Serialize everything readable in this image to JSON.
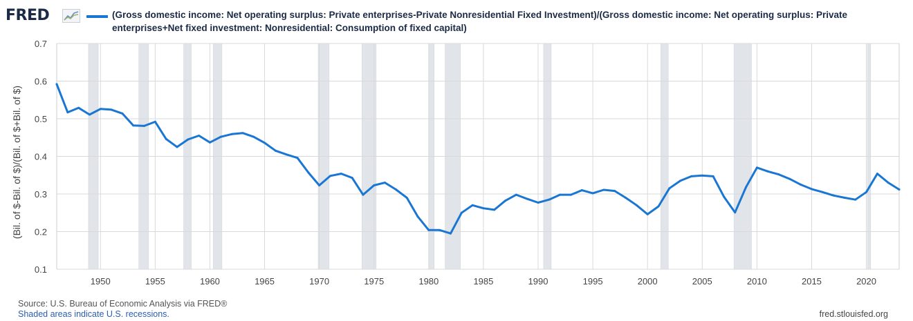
{
  "header": {
    "logo_text": "FRED",
    "logo_icon": "trend-line-icon",
    "legend_label": "(Gross domestic income: Net operating surplus: Private enterprises-Private Nonresidential Fixed Investment)/(Gross domestic income: Net operating surplus: Private enterprises+Net fixed investment: Nonresidential: Consumption of fixed capital)"
  },
  "footer": {
    "source": "Source: U.S. Bureau of Economic Analysis via FRED®",
    "recessions_note": "Shaded areas indicate U.S. recessions.",
    "site": "fred.stlouisfed.org"
  },
  "colors": {
    "line": "#1976d2",
    "recession": "#e1e5ea",
    "grid": "#d9d9d9",
    "text": "#444444"
  },
  "chart_data": {
    "type": "line",
    "xlabel": "",
    "ylabel": "(Bil. of $-Bil. of $)/(Bil. of $+Bil. of $)",
    "xlim": [
      1946,
      2023
    ],
    "ylim": [
      0.1,
      0.7
    ],
    "x_ticks": [
      1950,
      1955,
      1960,
      1965,
      1970,
      1975,
      1980,
      1985,
      1990,
      1995,
      2000,
      2005,
      2010,
      2015,
      2020
    ],
    "y_ticks": [
      "0.1",
      "0.2",
      "0.3",
      "0.4",
      "0.5",
      "0.6",
      "0.7"
    ],
    "grid": true,
    "recessions": [
      [
        1948.9,
        1949.8
      ],
      [
        1953.5,
        1954.4
      ],
      [
        1957.6,
        1958.3
      ],
      [
        1960.3,
        1961.1
      ],
      [
        1969.9,
        1970.9
      ],
      [
        1973.9,
        1975.2
      ],
      [
        1980.0,
        1980.5
      ],
      [
        1981.5,
        1982.9
      ],
      [
        1990.5,
        1991.2
      ],
      [
        2001.2,
        2001.9
      ],
      [
        2007.9,
        2009.5
      ],
      [
        2020.1,
        2020.4
      ]
    ],
    "series": [
      {
        "x": [
          1946,
          1947,
          1948,
          1949,
          1950,
          1951,
          1952,
          1953,
          1954,
          1955,
          1956,
          1957,
          1958,
          1959,
          1960,
          1961,
          1962,
          1963,
          1964,
          1965,
          1966,
          1967,
          1968,
          1969,
          1970,
          1971,
          1972,
          1973,
          1974,
          1975,
          1976,
          1977,
          1978,
          1979,
          1980,
          1981,
          1982,
          1983,
          1984,
          1985,
          1986,
          1987,
          1988,
          1989,
          1990,
          1991,
          1992,
          1993,
          1994,
          1995,
          1996,
          1997,
          1998,
          1999,
          2000,
          2001,
          2002,
          2003,
          2004,
          2005,
          2006,
          2007,
          2008,
          2009,
          2010,
          2011,
          2012,
          2013,
          2014,
          2015,
          2016,
          2017,
          2018,
          2019,
          2020,
          2021,
          2022,
          2023
        ],
        "values": [
          0.592,
          0.517,
          0.529,
          0.511,
          0.526,
          0.524,
          0.514,
          0.482,
          0.481,
          0.492,
          0.446,
          0.425,
          0.445,
          0.455,
          0.437,
          0.452,
          0.459,
          0.462,
          0.452,
          0.436,
          0.415,
          0.405,
          0.396,
          0.357,
          0.323,
          0.348,
          0.354,
          0.343,
          0.298,
          0.323,
          0.33,
          0.312,
          0.29,
          0.24,
          0.204,
          0.204,
          0.195,
          0.25,
          0.27,
          0.262,
          0.258,
          0.282,
          0.298,
          0.287,
          0.277,
          0.285,
          0.298,
          0.298,
          0.31,
          0.302,
          0.311,
          0.308,
          0.29,
          0.27,
          0.246,
          0.267,
          0.315,
          0.335,
          0.347,
          0.349,
          0.347,
          0.292,
          0.251,
          0.318,
          0.37,
          0.36,
          0.352,
          0.34,
          0.325,
          0.313,
          0.305,
          0.296,
          0.29,
          0.285,
          0.305,
          0.354,
          0.33,
          0.312
        ]
      }
    ]
  }
}
